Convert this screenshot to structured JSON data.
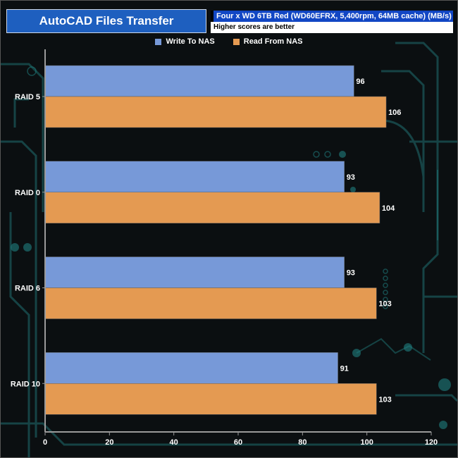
{
  "header": {
    "title": "AutoCAD Files Transfer",
    "subtitle": "Four x WD 6TB Red (WD60EFRX, 5,400rpm, 64MB cache) (MB/s)",
    "note": "Higher scores are better"
  },
  "colors": {
    "write": "#7799d8",
    "read": "#e49a52",
    "title_bg": "#1e5fbf",
    "subtitle_bg": "#1146c4",
    "circuit": "#1f6f70"
  },
  "chart_data": {
    "type": "bar",
    "orientation": "horizontal",
    "title": "AutoCAD Files Transfer",
    "subtitle": "Four x WD 6TB Red (WD60EFRX, 5,400rpm, 64MB cache) (MB/s)",
    "categories": [
      "RAID 5",
      "RAID 0",
      "RAID 6",
      "RAID 10"
    ],
    "series": [
      {
        "name": "Write To NAS",
        "values": [
          96,
          93,
          93,
          91
        ]
      },
      {
        "name": "Read From NAS",
        "values": [
          106,
          104,
          103,
          103
        ]
      }
    ],
    "xlim": [
      0,
      120
    ],
    "xticks": [
      0,
      20,
      40,
      60,
      80,
      100,
      120
    ],
    "xlabel": "",
    "ylabel": "",
    "legend": "top-center",
    "grid": false
  }
}
